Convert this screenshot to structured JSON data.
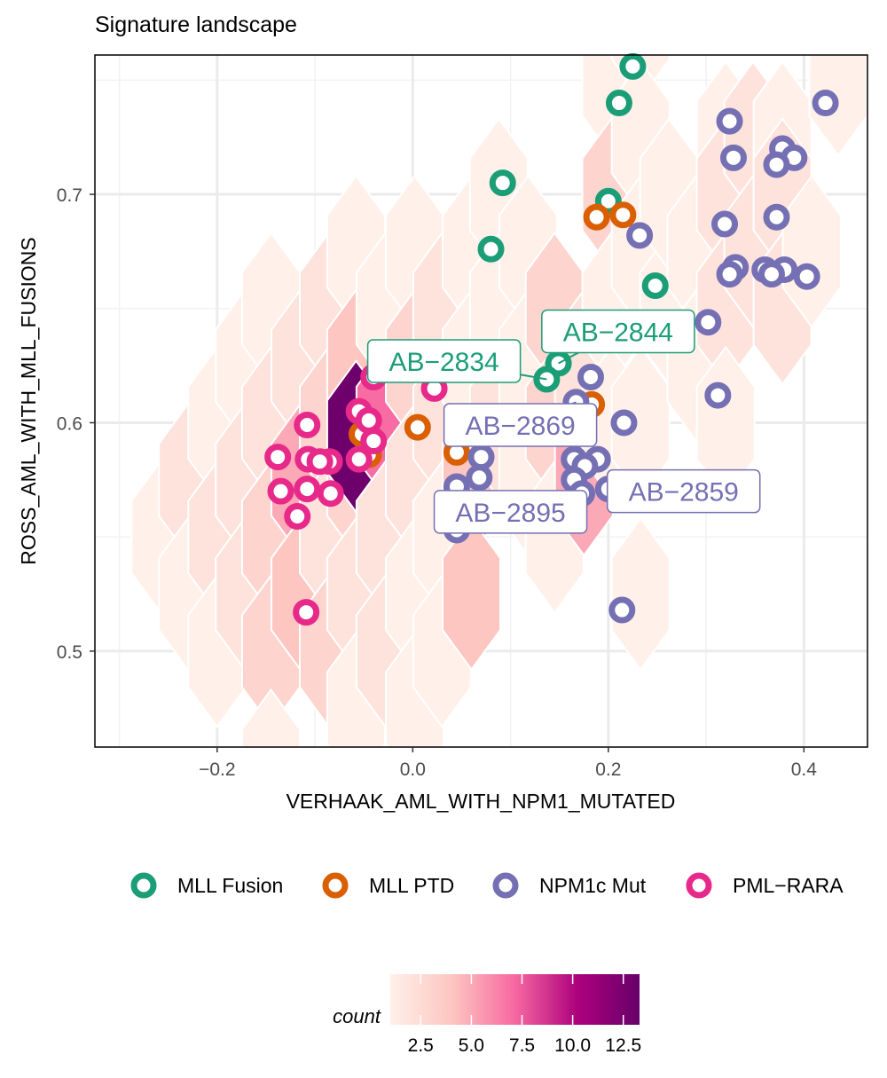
{
  "chart_data": {
    "type": "scatter",
    "title": "Signature landscape",
    "xlabel": "VERHAAK_AML_WITH_NPM1_MUTATED",
    "ylabel": "ROSS_AML_WITH_MLL_FUSIONS",
    "xlim": [
      -0.325,
      0.465
    ],
    "ylim": [
      0.458,
      0.761
    ],
    "x_ticks": [
      {
        "value": -0.2,
        "label": "−0.2"
      },
      {
        "value": 0.0,
        "label": "0.0"
      },
      {
        "value": 0.2,
        "label": "0.2"
      },
      {
        "value": 0.4,
        "label": "0.4"
      }
    ],
    "y_ticks": [
      {
        "value": 0.5,
        "label": "0.5"
      },
      {
        "value": 0.6,
        "label": "0.6"
      },
      {
        "value": 0.7,
        "label": "0.7"
      }
    ],
    "grid": true,
    "legend_position": "bottom",
    "series": [
      {
        "name": "MLL Fusion",
        "color": "#1B9E77",
        "points": [
          [
            0.225,
            0.756
          ],
          [
            0.211,
            0.74
          ],
          [
            0.092,
            0.705
          ],
          [
            0.2,
            0.697
          ],
          [
            0.08,
            0.676
          ],
          [
            0.248,
            0.66
          ],
          [
            0.149,
            0.626
          ],
          [
            0.137,
            0.619
          ]
        ]
      },
      {
        "name": "MLL PTD",
        "color": "#D95F02",
        "points": [
          [
            0.188,
            0.69
          ],
          [
            0.215,
            0.691
          ],
          [
            0.005,
            0.598
          ],
          [
            -0.052,
            0.595
          ],
          [
            -0.045,
            0.586
          ],
          [
            0.045,
            0.587
          ],
          [
            0.183,
            0.608
          ],
          [
            0.173,
            0.596
          ]
        ]
      },
      {
        "name": "NPM1c Mut",
        "color": "#7570B3",
        "points": [
          [
            0.422,
            0.74
          ],
          [
            0.324,
            0.732
          ],
          [
            0.378,
            0.72
          ],
          [
            0.328,
            0.716
          ],
          [
            0.39,
            0.716
          ],
          [
            0.372,
            0.713
          ],
          [
            0.319,
            0.687
          ],
          [
            0.372,
            0.69
          ],
          [
            0.232,
            0.682
          ],
          [
            0.33,
            0.668
          ],
          [
            0.324,
            0.665
          ],
          [
            0.38,
            0.667
          ],
          [
            0.36,
            0.667
          ],
          [
            0.403,
            0.664
          ],
          [
            0.367,
            0.665
          ],
          [
            0.302,
            0.644
          ],
          [
            0.182,
            0.62
          ],
          [
            0.312,
            0.612
          ],
          [
            0.167,
            0.609
          ],
          [
            0.216,
            0.6
          ],
          [
            0.189,
            0.584
          ],
          [
            0.165,
            0.584
          ],
          [
            0.07,
            0.585
          ],
          [
            0.176,
            0.581
          ],
          [
            0.045,
            0.572
          ],
          [
            0.068,
            0.576
          ],
          [
            0.165,
            0.575
          ],
          [
            0.173,
            0.569
          ],
          [
            0.2,
            0.571
          ],
          [
            0.053,
            0.561
          ],
          [
            0.045,
            0.553
          ],
          [
            0.214,
            0.518
          ]
        ]
      },
      {
        "name": "PML−RARA",
        "color": "#E7298A",
        "points": [
          [
            -0.04,
            0.62
          ],
          [
            0.022,
            0.615
          ],
          [
            -0.055,
            0.605
          ],
          [
            -0.108,
            0.599
          ],
          [
            -0.045,
            0.601
          ],
          [
            -0.04,
            0.592
          ],
          [
            -0.085,
            0.583
          ],
          [
            -0.107,
            0.584
          ],
          [
            -0.138,
            0.585
          ],
          [
            -0.095,
            0.583
          ],
          [
            -0.055,
            0.584
          ],
          [
            -0.135,
            0.57
          ],
          [
            -0.108,
            0.571
          ],
          [
            -0.084,
            0.569
          ],
          [
            -0.118,
            0.559
          ],
          [
            -0.109,
            0.517
          ]
        ]
      }
    ],
    "annotations": [
      {
        "text": "AB−2844",
        "series": "MLL Fusion",
        "point": [
          0.149,
          0.626
        ],
        "label_at": [
          0.21,
          0.64
        ]
      },
      {
        "text": "AB−2834",
        "series": "MLL Fusion",
        "point": [
          0.137,
          0.619
        ],
        "label_at": [
          0.032,
          0.627
        ]
      },
      {
        "text": "AB−2869",
        "series": "NPM1c Mut",
        "point": [
          0.167,
          0.609
        ],
        "label_at": [
          0.11,
          0.599
        ]
      },
      {
        "text": "AB−2859",
        "series": "NPM1c Mut",
        "point": [
          0.2,
          0.571
        ],
        "label_at": [
          0.277,
          0.57
        ]
      },
      {
        "text": "AB−2895",
        "series": "NPM1c Mut",
        "point": [
          0.053,
          0.561
        ],
        "label_at": [
          0.1,
          0.561
        ]
      }
    ],
    "hexbin": {
      "cells": [
        [
          -0.258,
          0.55,
          1
        ],
        [
          -0.23,
          0.575,
          2
        ],
        [
          -0.23,
          0.525,
          1
        ],
        [
          -0.2,
          0.6,
          1
        ],
        [
          -0.2,
          0.55,
          2
        ],
        [
          -0.2,
          0.5,
          1
        ],
        [
          -0.172,
          0.625,
          1
        ],
        [
          -0.172,
          0.575,
          2
        ],
        [
          -0.172,
          0.525,
          2
        ],
        [
          -0.145,
          0.65,
          1
        ],
        [
          -0.145,
          0.6,
          2
        ],
        [
          -0.145,
          0.55,
          3
        ],
        [
          -0.145,
          0.5,
          3
        ],
        [
          -0.145,
          0.45,
          1
        ],
        [
          -0.115,
          0.625,
          2
        ],
        [
          -0.115,
          0.575,
          5
        ],
        [
          -0.115,
          0.525,
          4
        ],
        [
          -0.086,
          0.65,
          2
        ],
        [
          -0.086,
          0.6,
          3
        ],
        [
          -0.086,
          0.55,
          2
        ],
        [
          -0.086,
          0.5,
          3
        ],
        [
          -0.058,
          0.675,
          1
        ],
        [
          -0.058,
          0.625,
          4
        ],
        [
          -0.058,
          0.575,
          3
        ],
        [
          -0.058,
          0.525,
          2
        ],
        [
          -0.058,
          0.475,
          1
        ],
        [
          -0.058,
          0.594,
          13
        ],
        [
          -0.028,
          0.65,
          1
        ],
        [
          -0.028,
          0.6,
          7
        ],
        [
          -0.028,
          0.55,
          2
        ],
        [
          -0.028,
          0.5,
          2
        ],
        [
          0.002,
          0.675,
          1
        ],
        [
          0.002,
          0.625,
          3
        ],
        [
          0.002,
          0.575,
          2
        ],
        [
          0.002,
          0.525,
          1
        ],
        [
          0.002,
          0.475,
          1
        ],
        [
          0.03,
          0.65,
          2
        ],
        [
          0.03,
          0.6,
          2
        ],
        [
          0.03,
          0.55,
          1
        ],
        [
          0.03,
          0.5,
          1
        ],
        [
          0.06,
          0.675,
          1
        ],
        [
          0.06,
          0.625,
          1
        ],
        [
          0.06,
          0.575,
          4
        ],
        [
          0.06,
          0.525,
          4
        ],
        [
          0.088,
          0.7,
          1
        ],
        [
          0.088,
          0.65,
          1
        ],
        [
          0.088,
          0.6,
          2
        ],
        [
          0.118,
          0.675,
          1
        ],
        [
          0.118,
          0.625,
          1
        ],
        [
          0.118,
          0.575,
          1
        ],
        [
          0.145,
          0.65,
          3
        ],
        [
          0.145,
          0.6,
          3
        ],
        [
          0.145,
          0.55,
          1
        ],
        [
          0.175,
          0.625,
          2
        ],
        [
          0.175,
          0.575,
          5
        ],
        [
          0.203,
          0.75,
          1
        ],
        [
          0.203,
          0.7,
          3
        ],
        [
          0.203,
          0.65,
          1
        ],
        [
          0.203,
          0.6,
          1
        ],
        [
          0.233,
          0.775,
          1
        ],
        [
          0.233,
          0.725,
          1
        ],
        [
          0.233,
          0.675,
          1
        ],
        [
          0.233,
          0.525,
          1
        ],
        [
          0.233,
          0.6,
          1
        ],
        [
          0.262,
          0.65,
          1
        ],
        [
          0.262,
          0.7,
          1
        ],
        [
          0.29,
          0.675,
          1
        ],
        [
          0.29,
          0.625,
          1
        ],
        [
          0.32,
          0.725,
          1
        ],
        [
          0.32,
          0.7,
          2
        ],
        [
          0.32,
          0.65,
          2
        ],
        [
          0.32,
          0.6,
          1
        ],
        [
          0.348,
          0.725,
          2
        ],
        [
          0.348,
          0.675,
          2
        ],
        [
          0.378,
          0.725,
          1
        ],
        [
          0.378,
          0.7,
          2
        ],
        [
          0.378,
          0.65,
          2
        ],
        [
          0.408,
          0.675,
          1
        ],
        [
          0.435,
          0.75,
          1
        ]
      ],
      "colorbar": {
        "title": "count",
        "min": 1,
        "max": 13.3,
        "ticks": [
          {
            "value": 2.5,
            "label": "2.5"
          },
          {
            "value": 5.0,
            "label": "5.0"
          },
          {
            "value": 7.5,
            "label": "7.5"
          },
          {
            "value": 10.0,
            "label": "10.0"
          },
          {
            "value": 12.5,
            "label": "12.5"
          }
        ],
        "colors": [
          "#FFF0E9",
          "#FDC5C0",
          "#F768A1",
          "#AE017E",
          "#67006A"
        ]
      }
    }
  }
}
